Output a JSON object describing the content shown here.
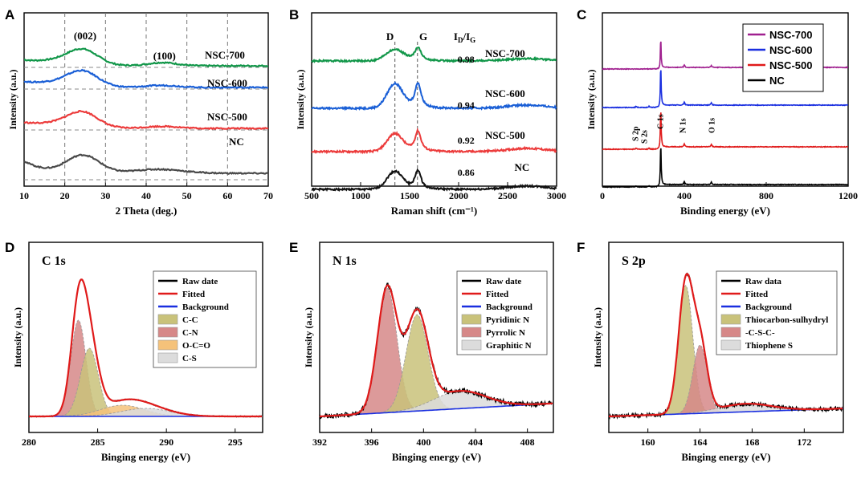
{
  "figure": {
    "panels": [
      "A",
      "B",
      "C",
      "D",
      "E",
      "F"
    ]
  },
  "chart_data": [
    {
      "id": "A",
      "type": "line",
      "xlabel": "2 Theta (deg.)",
      "ylabel": "Intensity (a.u.)",
      "xlim": [
        10,
        70
      ],
      "xticks": [
        "10",
        "20",
        "30",
        "40",
        "50",
        "60",
        "70"
      ],
      "vlines": [
        20,
        30,
        40,
        50,
        60
      ],
      "peak_labels": [
        "(002)",
        "(100)"
      ],
      "series": [
        {
          "name": "NSC-700",
          "color": "#109648",
          "points": [
            [
              10,
              0.1
            ],
            [
              15,
              0.2
            ],
            [
              20,
              0.45
            ],
            [
              25,
              0.72
            ],
            [
              30,
              0.3
            ],
            [
              35,
              0.12
            ],
            [
              40,
              0.1
            ],
            [
              45,
              0.16
            ],
            [
              50,
              0.08
            ],
            [
              55,
              0.05
            ],
            [
              60,
              0.04
            ],
            [
              65,
              0.03
            ],
            [
              70,
              0.02
            ]
          ]
        },
        {
          "name": "NSC-600",
          "color": "#1a5fd6",
          "points": [
            [
              10,
              0.1
            ],
            [
              15,
              0.2
            ],
            [
              20,
              0.45
            ],
            [
              25,
              0.7
            ],
            [
              30,
              0.3
            ],
            [
              35,
              0.12
            ],
            [
              40,
              0.1
            ],
            [
              45,
              0.14
            ],
            [
              50,
              0.08
            ],
            [
              55,
              0.05
            ],
            [
              60,
              0.04
            ],
            [
              65,
              0.03
            ],
            [
              70,
              0.02
            ]
          ]
        },
        {
          "name": "NSC-500",
          "color": "#ec3b3b",
          "points": [
            [
              10,
              0.1
            ],
            [
              15,
              0.2
            ],
            [
              20,
              0.45
            ],
            [
              25,
              0.7
            ],
            [
              30,
              0.3
            ],
            [
              35,
              0.12
            ],
            [
              40,
              0.1
            ],
            [
              45,
              0.12
            ],
            [
              50,
              0.08
            ],
            [
              55,
              0.05
            ],
            [
              60,
              0.04
            ],
            [
              65,
              0.03
            ],
            [
              70,
              0.02
            ]
          ]
        },
        {
          "name": "NC",
          "color": "#4a4a4a",
          "points": [
            [
              10,
              1.0
            ],
            [
              15,
              0.78
            ],
            [
              20,
              0.7
            ],
            [
              25,
              0.9
            ],
            [
              30,
              0.42
            ],
            [
              35,
              0.22
            ],
            [
              40,
              0.18
            ],
            [
              45,
              0.2
            ],
            [
              50,
              0.12
            ],
            [
              55,
              0.08
            ],
            [
              60,
              0.06
            ],
            [
              65,
              0.05
            ],
            [
              70,
              0.04
            ]
          ]
        }
      ]
    },
    {
      "id": "B",
      "type": "line",
      "xlabel": "Raman shift (cm⁻¹)",
      "ylabel": "Intensity (a.u.)",
      "xlim": [
        500,
        3000
      ],
      "xticks": [
        "500",
        "1000",
        "1500",
        "2000",
        "2500",
        "3000"
      ],
      "band_labels": [
        "D",
        "G"
      ],
      "vlines": [
        1350,
        1580
      ],
      "ratio_header_main": "I",
      "ratio_header_d": "D",
      "ratio_header_slash": "/I",
      "ratio_header_g": "G",
      "series": [
        {
          "name": "NSC-700",
          "ratio": "0.98",
          "color": "#109648"
        },
        {
          "name": "NSC-600",
          "ratio": "0.94",
          "color": "#1a5fd6"
        },
        {
          "name": "NSC-500",
          "ratio": "0.92",
          "color": "#ec3b3b"
        },
        {
          "name": "NC",
          "ratio": "0.86",
          "color": "#111111"
        }
      ]
    },
    {
      "id": "C",
      "type": "line",
      "xlabel": "Binding energy (eV)",
      "ylabel": "Intensity (a.u.)",
      "xlim": [
        0,
        1200
      ],
      "xticks": [
        "0",
        "400",
        "800",
        "1200"
      ],
      "peak_labels": [
        "S 2p",
        "S 2s",
        "C 1s",
        "N 1s",
        "O 1s"
      ],
      "series": [
        {
          "name": "NSC-700",
          "color": "#a0208f"
        },
        {
          "name": "NSC-600",
          "color": "#1a2fe0"
        },
        {
          "name": "NSC-500",
          "color": "#e01a1a"
        },
        {
          "name": "NC",
          "color": "#000000"
        }
      ]
    },
    {
      "id": "D",
      "type": "area",
      "title": "C 1s",
      "xlabel": "Binging energy (eV)",
      "ylabel": "Intensity (a.u.)",
      "xlim": [
        280,
        297
      ],
      "xticks": [
        "280",
        "285",
        "290",
        "295"
      ],
      "legend": [
        {
          "label": "Raw date",
          "color": "#000000",
          "kind": "line"
        },
        {
          "label": "Fitted",
          "color": "#e01a1a",
          "kind": "line"
        },
        {
          "label": "Background",
          "color": "#1a2fe0",
          "kind": "line"
        },
        {
          "label": "C-C",
          "color": "#c9c27a",
          "kind": "box"
        },
        {
          "label": "C-N",
          "color": "#d68888",
          "kind": "box"
        },
        {
          "label": "O-C=O",
          "color": "#f5c27a",
          "kind": "box"
        },
        {
          "label": "C-S",
          "color": "#dcdcdc",
          "kind": "box"
        }
      ]
    },
    {
      "id": "E",
      "type": "area",
      "title": "N 1s",
      "xlabel": "Binging energy (eV)",
      "ylabel": "Intensity (a.u.)",
      "xlim": [
        392,
        410
      ],
      "xticks": [
        "392",
        "396",
        "400",
        "404",
        "408"
      ],
      "legend": [
        {
          "label": "Raw date",
          "color": "#000000",
          "kind": "line"
        },
        {
          "label": "Fitted",
          "color": "#e01a1a",
          "kind": "line"
        },
        {
          "label": "Background",
          "color": "#1a2fe0",
          "kind": "line"
        },
        {
          "label": "Pyridinic N",
          "color": "#c9c27a",
          "kind": "box"
        },
        {
          "label": "Pyrrolic N",
          "color": "#d68888",
          "kind": "box"
        },
        {
          "label": "Graphitic N",
          "color": "#dcdcdc",
          "kind": "box"
        }
      ]
    },
    {
      "id": "F",
      "type": "area",
      "title": "S 2p",
      "xlabel": "Binging energy (eV)",
      "ylabel": "Intensity (a.u.)",
      "xlim": [
        157,
        175
      ],
      "xticks": [
        "160",
        "164",
        "168",
        "172"
      ],
      "legend": [
        {
          "label": "Raw data",
          "color": "#000000",
          "kind": "line"
        },
        {
          "label": "Fitted",
          "color": "#e01a1a",
          "kind": "line"
        },
        {
          "label": "Background",
          "color": "#1a2fe0",
          "kind": "line"
        },
        {
          "label": "Thiocarbon-sulhydryl",
          "color": "#c9c27a",
          "kind": "box"
        },
        {
          "label": "-C-S-C-",
          "color": "#d68888",
          "kind": "box"
        },
        {
          "label": "Thiophene S",
          "color": "#dcdcdc",
          "kind": "box"
        }
      ]
    }
  ]
}
